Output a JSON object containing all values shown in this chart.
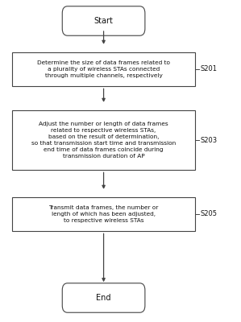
{
  "background_color": "#ffffff",
  "fig_width": 2.99,
  "fig_height": 4.0,
  "dpi": 100,
  "start_text": "Start",
  "end_text": "End",
  "box1_text": "Determine the size of data frames related to\na plurality of wireless STAs connected\nthrough multiple channels, respectively",
  "box2_text": "Adjust the number or length of data frames\nrelated to respective wireless STAs,\nbased on the result of determination,\nso that transmission start time and transmission\nend time of data frames coincide during\ntransmission duration of AP",
  "box3_text": "Transmit data frames, the number or\nlength of which has been adjusted,\nto respective wireless STAs",
  "label1": "S201",
  "label2": "S203",
  "label3": "S205",
  "box_edge_color": "#444444",
  "box_fill_color": "#ffffff",
  "text_color": "#111111",
  "arrow_color": "#444444",
  "font_size": 5.3,
  "label_font_size": 6.0,
  "pill_font_size": 7.0
}
